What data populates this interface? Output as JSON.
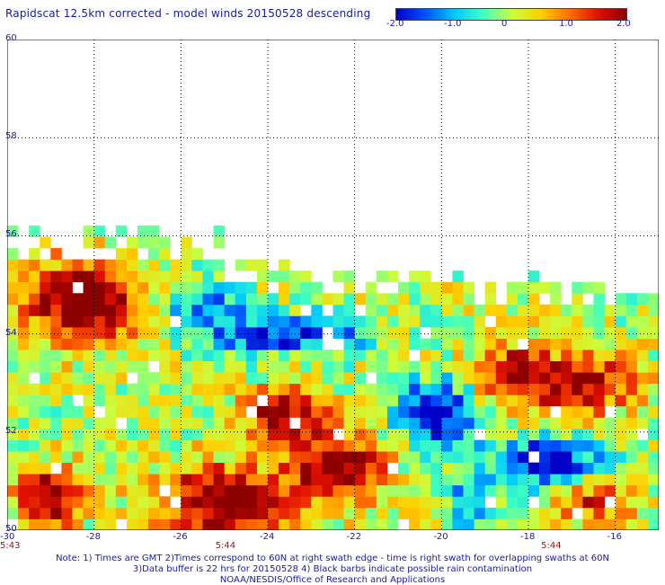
{
  "title": "Rapidscat 12.5km corrected - model winds 20150528 descending",
  "colorbar": {
    "ticks": [
      "-2.0",
      "-1.0",
      "0",
      "1.0",
      "2.0"
    ],
    "min": -2.0,
    "max": 2.0,
    "colors": [
      "#0000c8",
      "#0050ff",
      "#00c8ff",
      "#40ffc0",
      "#c8ff40",
      "#ffd000",
      "#ff7000",
      "#e01000",
      "#8c0000"
    ]
  },
  "chart_data": {
    "type": "heatmap",
    "title": "Rapidscat 12.5km corrected - model winds 20150528 descending",
    "xlabel": "",
    "ylabel": "",
    "x_ticks": [
      "-28",
      "-26",
      "-24",
      "-22",
      "-20",
      "-18",
      "-16"
    ],
    "y_ticks": [
      "60",
      "58",
      "56",
      "54",
      "52",
      "50"
    ],
    "corner_label": "-30",
    "xlim": [
      -30,
      -15
    ],
    "ylim": [
      50,
      60
    ],
    "value_range": [
      -2.0,
      2.0
    ],
    "grid": "dotted",
    "time_labels": [
      {
        "text": "5:43",
        "lon": -30
      },
      {
        "text": "5:44",
        "lon": -25
      },
      {
        "text": "5:44",
        "lon": -17.5
      }
    ]
  },
  "notes": [
    "Note: 1) Times are GMT 2)Times correspond to 60N at right swath edge - time is right swath for overlapping swaths at 60N",
    "3)Data buffer is 22 hrs for 20150528 4) Black barbs indicate possible rain contamination",
    "NOAA/NESDIS/Office of Research and Applications"
  ]
}
